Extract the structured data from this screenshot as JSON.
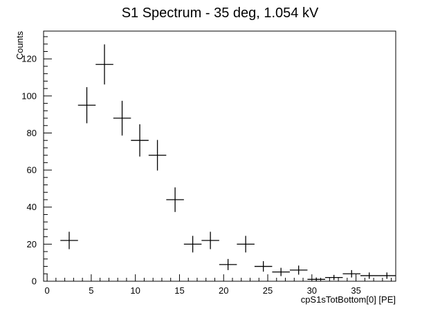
{
  "chart_data": {
    "type": "scatter",
    "title": "S1 Spectrum - 35 deg, 1.054 kV",
    "xlabel": "cpS1sTotBottom[0] [PE]",
    "ylabel": "Counts",
    "xlim": [
      -0.4,
      39.5
    ],
    "ylim": [
      0,
      135
    ],
    "x_ticks": [
      0,
      5,
      10,
      15,
      20,
      25,
      30,
      35
    ],
    "x_tick_labels": [
      "0",
      "5",
      "10",
      "15",
      "20",
      "25",
      "30",
      "35"
    ],
    "y_ticks": [
      0,
      20,
      40,
      60,
      80,
      100,
      120
    ],
    "y_tick_labels": [
      "0",
      "20",
      "40",
      "60",
      "80",
      "100",
      "120"
    ],
    "grid": false,
    "bin_width": 2,
    "series": [
      {
        "x": [
          2.5,
          4.5,
          6.5,
          8.5,
          10.5,
          12.5,
          14.5,
          16.5,
          18.5,
          20.5,
          22.5,
          24.5,
          26.5,
          28.5,
          30.5,
          32.5,
          34.5,
          36.5,
          38.5
        ],
        "values": [
          22,
          95,
          117,
          88,
          76,
          68,
          44,
          20,
          22,
          9,
          20,
          8,
          5,
          6,
          1,
          2,
          4,
          3,
          3
        ]
      }
    ],
    "line_color": "#000000"
  }
}
